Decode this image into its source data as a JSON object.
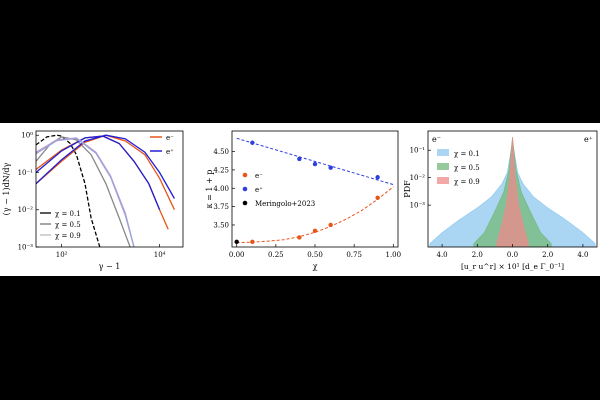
{
  "chart_data": [
    {
      "type": "line",
      "xlabel": "γ − 1",
      "ylabel": "(γ − 1)dN/dγ",
      "x_scale": "log",
      "y_scale": "log",
      "xlim": [
        30,
        30000
      ],
      "ylim": [
        0.001,
        1.3
      ],
      "x_ticks": [
        {
          "v": 100,
          "label": "10²"
        },
        {
          "v": 10000,
          "label": "10⁴"
        }
      ],
      "y_ticks": [
        {
          "v": 1,
          "label": "10⁰"
        },
        {
          "v": 0.1,
          "label": "10⁻¹"
        },
        {
          "v": 0.01,
          "label": "10⁻²"
        },
        {
          "v": 0.001,
          "label": "10⁻³"
        }
      ],
      "legend_species": [
        {
          "name": "e⁻",
          "color": "#e8551b"
        },
        {
          "name": "e⁺",
          "color": "#1f1fd6"
        }
      ],
      "legend_chi": [
        {
          "name": "χ = 0.1",
          "color": "#000000"
        },
        {
          "name": "χ = 0.5",
          "color": "#777777"
        },
        {
          "name": "χ = 0.9",
          "color": "#bbbbbb"
        }
      ],
      "series": [
        {
          "group": "chi0.1",
          "color": "#000000",
          "dash": true,
          "x": [
            30,
            50,
            80,
            100,
            150,
            200,
            300,
            400,
            600
          ],
          "y": [
            0.55,
            0.9,
            1.0,
            0.95,
            0.6,
            0.3,
            0.05,
            0.006,
            0.001
          ]
        },
        {
          "group": "chi0.5",
          "color": "#888888",
          "dash": false,
          "x": [
            30,
            60,
            100,
            200,
            400,
            800,
            1500,
            2500
          ],
          "y": [
            0.2,
            0.6,
            0.9,
            0.75,
            0.3,
            0.05,
            0.006,
            0.001
          ]
        },
        {
          "group": "e-",
          "color": "#e8551b",
          "dash": false,
          "x": [
            30,
            100,
            300,
            700,
            1500,
            3000,
            6000,
            10000,
            15000
          ],
          "y": [
            0.12,
            0.4,
            0.85,
            0.95,
            0.6,
            0.2,
            0.05,
            0.01,
            0.003
          ]
        },
        {
          "group": "e-",
          "color": "#e8551b",
          "dash": false,
          "x": [
            30,
            100,
            300,
            800,
            2000,
            5000,
            10000,
            20000
          ],
          "y": [
            0.05,
            0.2,
            0.65,
            1.0,
            0.7,
            0.3,
            0.07,
            0.01
          ]
        },
        {
          "group": "e+",
          "color": "#1f1fd6",
          "dash": false,
          "x": [
            30,
            100,
            300,
            800,
            2000,
            5000,
            10000,
            20000
          ],
          "y": [
            0.05,
            0.22,
            0.7,
            1.0,
            0.8,
            0.35,
            0.1,
            0.02
          ]
        },
        {
          "group": "e+",
          "color": "#1f1fd6",
          "dash": false,
          "x": [
            30,
            100,
            300,
            700,
            1500,
            3000,
            6000,
            10000
          ],
          "y": [
            0.1,
            0.38,
            0.85,
            0.95,
            0.6,
            0.2,
            0.05,
            0.01
          ]
        },
        {
          "group": "chi0.9",
          "color": "#c39bd6",
          "dash": false,
          "x": [
            30,
            80,
            200,
            500,
            1000,
            2000,
            3000
          ],
          "y": [
            0.35,
            0.75,
            0.85,
            0.35,
            0.08,
            0.008,
            0.001
          ]
        },
        {
          "group": "chi0.9",
          "color": "#9aa5d8",
          "dash": false,
          "x": [
            30,
            80,
            200,
            500,
            1000,
            2000,
            3000
          ],
          "y": [
            0.32,
            0.72,
            0.83,
            0.33,
            0.075,
            0.007,
            0.001
          ]
        }
      ]
    },
    {
      "type": "scatter",
      "xlabel": "χ",
      "ylabel": "κ = 1 + p",
      "xlim": [
        -0.03,
        1.03
      ],
      "ylim": [
        3.2,
        4.78
      ],
      "x_ticks": [
        {
          "v": 0,
          "label": "0.00"
        },
        {
          "v": 0.25,
          "label": "0.25"
        },
        {
          "v": 0.5,
          "label": "0.50"
        },
        {
          "v": 0.75,
          "label": "0.75"
        },
        {
          "v": 1.0,
          "label": "1.00"
        }
      ],
      "y_ticks": [
        {
          "v": 3.5,
          "label": "3.50"
        },
        {
          "v": 3.75,
          "label": "3.75"
        },
        {
          "v": 4.0,
          "label": "4.00"
        },
        {
          "v": 4.25,
          "label": "4.25"
        },
        {
          "v": 4.5,
          "label": "4.50"
        }
      ],
      "legend": [
        {
          "name": "e⁻",
          "color": "#e8551b"
        },
        {
          "name": "e⁺",
          "color": "#2e3fe0"
        },
        {
          "name": "Meringolo+2023",
          "color": "#000000"
        }
      ],
      "series": [
        {
          "name": "e⁻",
          "color": "#e8551b",
          "x": [
            0.1,
            0.4,
            0.5,
            0.6,
            0.9
          ],
          "y": [
            3.27,
            3.33,
            3.42,
            3.5,
            3.87
          ]
        },
        {
          "name": "e⁺",
          "color": "#2e3fe0",
          "x": [
            0.1,
            0.4,
            0.5,
            0.6,
            0.9
          ],
          "y": [
            4.62,
            4.4,
            4.33,
            4.28,
            4.15
          ]
        },
        {
          "name": "Meringolo+2023",
          "color": "#000000",
          "x": [
            0.0
          ],
          "y": [
            3.27
          ]
        }
      ],
      "fits": [
        {
          "color": "#e8551b",
          "x": [
            0.0,
            0.1,
            0.2,
            0.3,
            0.4,
            0.5,
            0.6,
            0.7,
            0.8,
            0.9,
            1.0
          ],
          "y": [
            3.26,
            3.265,
            3.28,
            3.3,
            3.34,
            3.4,
            3.48,
            3.58,
            3.7,
            3.85,
            4.02
          ]
        },
        {
          "color": "#2e3fe0",
          "x": [
            0.0,
            1.0
          ],
          "y": [
            4.68,
            4.05
          ]
        }
      ]
    },
    {
      "type": "area",
      "xlabel": "[u_r u^r] × 10¹ [d_e Γ_0⁻¹]",
      "ylabel": "PDF",
      "y_scale": "log",
      "xlim": [
        -4.8,
        4.8
      ],
      "ylim": [
        3e-05,
        0.5
      ],
      "x_ticks": [
        {
          "v": -4,
          "label": "4.0"
        },
        {
          "v": -2,
          "label": "2.0"
        },
        {
          "v": 0,
          "label": "0.0"
        },
        {
          "v": 2,
          "label": "2.0"
        },
        {
          "v": 4,
          "label": "4.0"
        }
      ],
      "y_ticks": [
        {
          "v": 0.1,
          "label": "10⁻¹"
        },
        {
          "v": 0.01,
          "label": "10⁻²"
        },
        {
          "v": 0.001,
          "label": "10⁻³"
        }
      ],
      "corner_labels": [
        "e⁻",
        "e⁺"
      ],
      "legend": [
        {
          "name": "χ = 0.1",
          "color": "#8ec8ef"
        },
        {
          "name": "χ = 0.5",
          "color": "#74b87a"
        },
        {
          "name": "χ = 0.9",
          "color": "#ef8a8a"
        }
      ],
      "series": [
        {
          "name": "χ = 0.1",
          "color": "#8ec8ef",
          "x": [
            -4.7,
            -4,
            -3,
            -2,
            -1.2,
            -0.6,
            -0.3,
            0,
            0.3,
            0.6,
            1.2,
            2,
            3,
            4,
            4.7
          ],
          "y": [
            4e-05,
            0.0001,
            0.0003,
            0.0008,
            0.002,
            0.006,
            0.015,
            0.2,
            0.015,
            0.006,
            0.002,
            0.0008,
            0.0003,
            0.0001,
            4e-05
          ]
        },
        {
          "name": "χ = 0.5",
          "color": "#74b87a",
          "x": [
            -2.2,
            -1.6,
            -1,
            -0.5,
            -0.2,
            0,
            0.2,
            0.5,
            1,
            1.6,
            2.2
          ],
          "y": [
            4e-05,
            0.0001,
            0.0006,
            0.003,
            0.02,
            0.3,
            0.02,
            0.003,
            0.0006,
            0.0001,
            4e-05
          ]
        },
        {
          "name": "χ = 0.9",
          "color": "#ef8a8a",
          "x": [
            -0.9,
            -0.6,
            -0.35,
            -0.15,
            0,
            0.15,
            0.35,
            0.6,
            0.9
          ],
          "y": [
            4e-05,
            0.0002,
            0.001,
            0.01,
            0.3,
            0.01,
            0.001,
            0.0002,
            4e-05
          ]
        }
      ]
    }
  ]
}
